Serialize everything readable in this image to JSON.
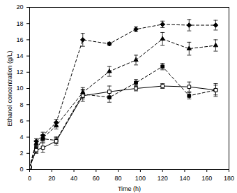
{
  "chart_data": {
    "type": "line",
    "x_label": "Time (h)",
    "y_label": "Ethanol concentration (g/L)",
    "x": [
      0,
      6,
      12,
      24,
      48,
      72,
      96,
      120,
      144,
      168
    ],
    "xlim": [
      0,
      180
    ],
    "xticks": [
      0,
      20,
      40,
      60,
      80,
      100,
      120,
      140,
      160,
      180
    ],
    "ylim": [
      0,
      20
    ],
    "yticks": [
      0,
      2,
      4,
      6,
      8,
      10,
      12,
      14,
      16,
      18,
      20
    ],
    "series": [
      {
        "color": "#000000",
        "marker": "diamond",
        "line_style": "dashed",
        "values": [
          0.3,
          3.5,
          4.2,
          5.8,
          16.0,
          15.5,
          17.3,
          17.9,
          17.8,
          17.8
        ],
        "errors": [
          0.1,
          0.3,
          0.4,
          0.4,
          0.8,
          0.2,
          0.3,
          0.4,
          0.7,
          0.6
        ]
      },
      {
        "color": "#000000",
        "marker": "triangle",
        "line_style": "dashed",
        "values": [
          0.3,
          3.2,
          3.9,
          5.4,
          9.5,
          12.1,
          13.5,
          16.1,
          14.9,
          15.3
        ],
        "errors": [
          0.1,
          0.3,
          0.4,
          0.4,
          0.6,
          0.6,
          0.6,
          0.8,
          0.8,
          0.7
        ]
      },
      {
        "color": "#000000",
        "marker": "square",
        "line_style": "dashed",
        "values": [
          0.3,
          2.5,
          3.8,
          3.6,
          9.3,
          8.9,
          10.7,
          12.7,
          9.1,
          9.8
        ],
        "errors": [
          0.1,
          0.4,
          0.5,
          0.4,
          0.6,
          0.6,
          0.4,
          0.4,
          0.4,
          0.6
        ]
      },
      {
        "color": "#000000",
        "marker": "square_open",
        "line_style": "solid",
        "values": [
          0.3,
          2.4,
          2.7,
          3.5,
          9.1,
          9.6,
          10.0,
          10.3,
          10.2,
          9.8
        ],
        "errors": [
          0.1,
          0.4,
          0.6,
          0.5,
          0.7,
          0.7,
          0.3,
          0.3,
          0.6,
          0.8
        ]
      }
    ]
  }
}
